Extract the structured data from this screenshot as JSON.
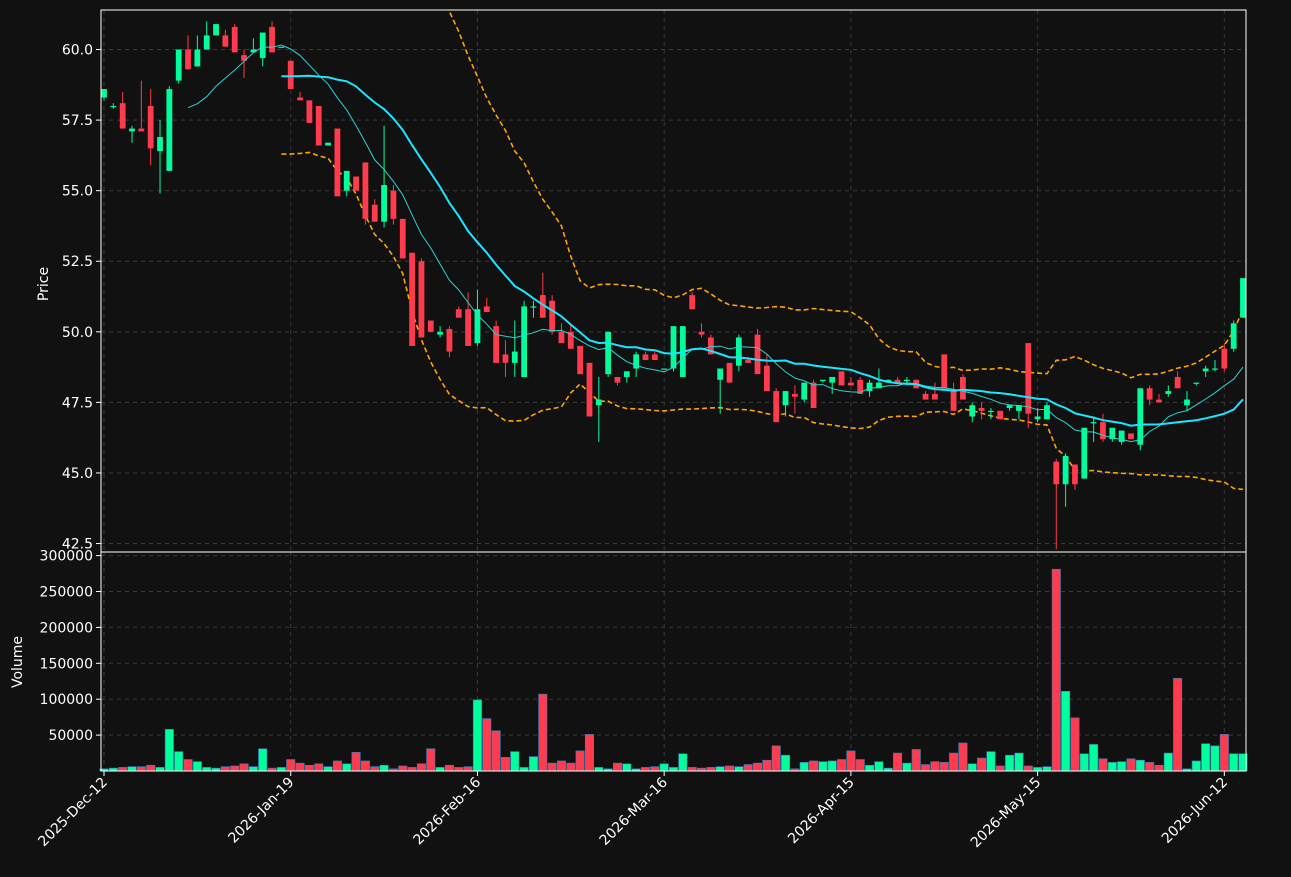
{
  "chart_data": {
    "type": "candlestick",
    "axes": {
      "price_ylabel": "Price",
      "volume_ylabel": "Volume",
      "price_ylim": [
        42.2,
        61.4
      ],
      "volume_ylim": [
        0,
        305000
      ],
      "price_ticks": [
        "42.5",
        "45.0",
        "47.5",
        "50.0",
        "52.5",
        "55.0",
        "57.5",
        "60.0"
      ],
      "volume_ticks": [
        "50000",
        "100000",
        "150000",
        "200000",
        "250000",
        "300000"
      ],
      "x_ticks": [
        {
          "label": "2025-Dec-12",
          "index": 0
        },
        {
          "label": "2026-Jan-19",
          "index": 20
        },
        {
          "label": "2026-Feb-16",
          "index": 40
        },
        {
          "label": "2026-Mar-16",
          "index": 60
        },
        {
          "label": "2026-Apr-15",
          "index": 80
        },
        {
          "label": "2026-May-15",
          "index": 100
        },
        {
          "label": "2026-Jun-12",
          "index": 120
        }
      ],
      "grid": true
    },
    "colors": {
      "background": "#111111",
      "up": "#00ff9c",
      "down": "#ff3b4d",
      "sma_fast": "#2ad4d4",
      "sma_slow": "#19e6ff",
      "bands": "#ffa500",
      "grid": "#3a3a3a",
      "text": "#ffffff"
    },
    "overlays": [
      {
        "key": "sma_fast",
        "style": "thin"
      },
      {
        "key": "sma_slow",
        "style": "thick"
      },
      {
        "key": "bands",
        "style": "dashed"
      }
    ],
    "ohlc": [
      [
        58.3,
        58.6,
        58.2,
        58.6,
        3000
      ],
      [
        58.0,
        58.1,
        57.9,
        58.0,
        4000
      ],
      [
        58.1,
        58.5,
        57.2,
        57.2,
        5000
      ],
      [
        57.1,
        57.3,
        56.7,
        57.2,
        6000
      ],
      [
        57.2,
        58.9,
        57.1,
        57.1,
        6000
      ],
      [
        58.0,
        58.6,
        55.9,
        56.5,
        8000
      ],
      [
        56.4,
        57.5,
        54.9,
        56.9,
        5000
      ],
      [
        55.7,
        58.7,
        55.7,
        58.6,
        58000
      ],
      [
        58.9,
        60.0,
        58.8,
        60.0,
        27000
      ],
      [
        60.0,
        60.5,
        59.3,
        59.3,
        16000
      ],
      [
        59.4,
        60.5,
        59.4,
        60.0,
        13000
      ],
      [
        60.0,
        61.0,
        60.0,
        60.5,
        5000
      ],
      [
        60.5,
        60.9,
        60.5,
        60.9,
        4000
      ],
      [
        60.5,
        60.7,
        60.1,
        60.1,
        6000
      ],
      [
        60.8,
        60.9,
        59.9,
        59.9,
        7000
      ],
      [
        59.8,
        60.0,
        59.0,
        59.6,
        10000
      ],
      [
        59.9,
        60.4,
        59.9,
        60.0,
        6000
      ],
      [
        59.7,
        60.6,
        59.4,
        60.6,
        31000
      ],
      [
        60.8,
        61.0,
        59.9,
        59.9,
        4000
      ],
      [
        60.1,
        60.1,
        60.1,
        60.1,
        5000
      ],
      [
        59.6,
        59.6,
        58.7,
        58.6,
        16000
      ],
      [
        58.3,
        58.5,
        58.2,
        58.2,
        11000
      ],
      [
        58.2,
        58.2,
        57.4,
        57.4,
        8000
      ],
      [
        58.0,
        58.0,
        56.7,
        56.6,
        10000
      ],
      [
        56.6,
        56.7,
        56.6,
        56.7,
        6000
      ],
      [
        57.2,
        57.2,
        54.8,
        54.8,
        14000
      ],
      [
        55.0,
        55.7,
        54.8,
        55.7,
        10000
      ],
      [
        55.5,
        55.5,
        55.0,
        55.0,
        26000
      ],
      [
        56.0,
        56.0,
        53.8,
        54.0,
        14000
      ],
      [
        54.5,
        54.7,
        53.9,
        53.9,
        6000
      ],
      [
        53.9,
        57.3,
        53.7,
        55.2,
        8000
      ],
      [
        55.0,
        55.2,
        53.8,
        54.0,
        3000
      ],
      [
        54.0,
        54.0,
        52.6,
        52.6,
        7000
      ],
      [
        52.8,
        52.8,
        49.5,
        49.5,
        5000
      ],
      [
        52.5,
        52.6,
        49.8,
        49.8,
        10000
      ],
      [
        50.4,
        50.4,
        50.0,
        50.0,
        31000
      ],
      [
        49.9,
        50.2,
        49.8,
        50.0,
        5000
      ],
      [
        50.1,
        50.2,
        49.1,
        49.3,
        8000
      ],
      [
        50.8,
        50.9,
        50.5,
        50.5,
        5000
      ],
      [
        50.8,
        51.4,
        49.5,
        49.5,
        6000
      ],
      [
        49.6,
        51.5,
        49.5,
        50.8,
        99000
      ],
      [
        50.9,
        51.2,
        50.7,
        50.7,
        73000
      ],
      [
        50.2,
        50.4,
        48.9,
        48.9,
        56000
      ],
      [
        49.2,
        49.7,
        48.4,
        48.9,
        19000
      ],
      [
        48.9,
        50.4,
        48.4,
        49.3,
        27000
      ],
      [
        48.4,
        51.1,
        48.4,
        50.9,
        5000
      ],
      [
        50.9,
        51.1,
        50.5,
        50.9,
        20000
      ],
      [
        51.3,
        52.1,
        50.5,
        50.5,
        107000
      ],
      [
        51.1,
        51.3,
        49.9,
        50.0,
        11000
      ],
      [
        50.0,
        50.3,
        49.6,
        49.6,
        14000
      ],
      [
        50.0,
        50.3,
        49.4,
        49.4,
        11000
      ],
      [
        49.5,
        49.5,
        48.5,
        48.5,
        28000
      ],
      [
        48.9,
        48.9,
        47.0,
        47.0,
        51000
      ],
      [
        47.4,
        48.4,
        46.1,
        47.6,
        5000
      ],
      [
        48.5,
        50.0,
        48.4,
        50.0,
        3000
      ],
      [
        48.4,
        48.4,
        48.1,
        48.2,
        11000
      ],
      [
        48.4,
        48.6,
        48.2,
        48.6,
        10000
      ],
      [
        48.7,
        49.3,
        48.4,
        49.2,
        3000
      ],
      [
        49.2,
        49.3,
        49.0,
        49.0,
        5000
      ],
      [
        49.2,
        49.3,
        49.0,
        49.0,
        6000
      ],
      [
        48.7,
        48.7,
        48.7,
        48.7,
        10000
      ],
      [
        48.7,
        50.2,
        48.6,
        50.2,
        5000
      ],
      [
        48.4,
        50.2,
        48.4,
        50.2,
        24000
      ],
      [
        51.3,
        51.4,
        50.8,
        50.8,
        5000
      ],
      [
        50.0,
        50.3,
        49.8,
        49.9,
        4000
      ],
      [
        49.8,
        49.9,
        49.2,
        49.2,
        5000
      ],
      [
        48.3,
        48.7,
        47.1,
        48.7,
        6000
      ],
      [
        48.9,
        48.9,
        48.2,
        48.2,
        7000
      ],
      [
        48.8,
        49.9,
        48.6,
        49.8,
        6000
      ],
      [
        49.0,
        49.1,
        48.9,
        48.9,
        9000
      ],
      [
        49.9,
        50.1,
        48.5,
        48.5,
        11000
      ],
      [
        48.8,
        49.2,
        47.9,
        47.9,
        15000
      ],
      [
        47.9,
        48.0,
        46.8,
        46.8,
        35000
      ],
      [
        47.4,
        47.9,
        47.0,
        47.9,
        22000
      ],
      [
        47.8,
        48.1,
        47.1,
        47.7,
        3000
      ],
      [
        47.6,
        48.2,
        47.5,
        48.2,
        12000
      ],
      [
        48.2,
        48.3,
        47.3,
        47.3,
        14000
      ],
      [
        48.3,
        48.3,
        48.2,
        48.3,
        13000
      ],
      [
        48.2,
        48.4,
        47.8,
        48.4,
        14000
      ],
      [
        48.6,
        48.6,
        48.1,
        48.1,
        16000
      ],
      [
        48.2,
        48.4,
        48.1,
        48.1,
        28000
      ],
      [
        48.3,
        48.4,
        47.8,
        47.8,
        16000
      ],
      [
        47.9,
        48.3,
        47.7,
        48.2,
        8000
      ],
      [
        48.0,
        48.7,
        48.0,
        48.2,
        13000
      ],
      [
        48.2,
        48.3,
        48.2,
        48.3,
        4000
      ],
      [
        48.3,
        48.4,
        48.2,
        48.2,
        25000
      ],
      [
        48.3,
        48.4,
        48.1,
        48.3,
        11000
      ],
      [
        48.3,
        48.3,
        48.0,
        48.0,
        30000
      ],
      [
        47.8,
        47.9,
        47.6,
        47.6,
        9000
      ],
      [
        47.8,
        48.2,
        47.6,
        47.6,
        13000
      ],
      [
        49.2,
        49.2,
        48.0,
        48.0,
        12000
      ],
      [
        47.9,
        48.2,
        47.2,
        47.2,
        25000
      ],
      [
        48.4,
        48.5,
        47.6,
        47.6,
        39000
      ],
      [
        47.0,
        47.5,
        46.8,
        47.4,
        10000
      ],
      [
        47.3,
        47.5,
        46.9,
        47.2,
        18000
      ],
      [
        47.2,
        47.3,
        46.9,
        47.2,
        27000
      ],
      [
        47.2,
        47.2,
        46.9,
        46.9,
        7000
      ],
      [
        47.3,
        47.4,
        47.2,
        47.4,
        22000
      ],
      [
        47.2,
        47.4,
        46.9,
        47.4,
        25000
      ],
      [
        49.6,
        49.6,
        46.6,
        47.1,
        7000
      ],
      [
        46.9,
        47.3,
        46.8,
        47.0,
        5000
      ],
      [
        46.9,
        47.5,
        46.9,
        47.4,
        6000
      ],
      [
        45.4,
        45.5,
        42.3,
        44.6,
        281000
      ],
      [
        44.6,
        45.7,
        43.8,
        45.6,
        111000
      ],
      [
        45.3,
        45.3,
        44.4,
        44.6,
        74000
      ],
      [
        44.8,
        46.6,
        44.8,
        46.6,
        24000
      ],
      [
        46.8,
        47.0,
        46.1,
        46.8,
        37000
      ],
      [
        46.8,
        47.1,
        46.1,
        46.2,
        17000
      ],
      [
        46.2,
        46.6,
        46.1,
        46.6,
        12000
      ],
      [
        46.1,
        46.5,
        46.0,
        46.5,
        13000
      ],
      [
        46.4,
        46.4,
        46.2,
        46.2,
        17000
      ],
      [
        46.0,
        48.0,
        45.8,
        48.0,
        15000
      ],
      [
        48.0,
        48.1,
        47.4,
        47.6,
        12000
      ],
      [
        47.6,
        47.8,
        47.5,
        47.5,
        8000
      ],
      [
        47.8,
        48.1,
        47.7,
        47.9,
        25000
      ],
      [
        48.4,
        48.6,
        48.0,
        48.0,
        129000
      ],
      [
        47.4,
        47.9,
        47.2,
        47.6,
        3000
      ],
      [
        48.2,
        48.2,
        48.1,
        48.2,
        14000
      ],
      [
        48.6,
        48.8,
        48.4,
        48.7,
        38000
      ],
      [
        48.7,
        49.0,
        48.6,
        48.7,
        35000
      ],
      [
        49.4,
        49.6,
        48.6,
        48.7,
        51000
      ],
      [
        49.4,
        50.4,
        49.3,
        50.3,
        24000
      ],
      [
        50.5,
        51.9,
        50.5,
        51.9,
        24000
      ]
    ]
  }
}
